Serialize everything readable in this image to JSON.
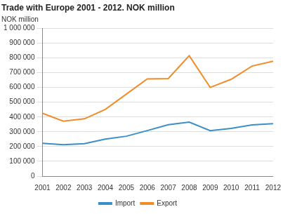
{
  "chart_data": {
    "type": "line",
    "title": "Trade with Europe 2001 - 2012. NOK million",
    "ylabel": "NOK million",
    "categories": [
      "2001",
      "2002",
      "2003",
      "2004",
      "2005",
      "2006",
      "2007",
      "2008",
      "2009",
      "2010",
      "2011",
      "2012"
    ],
    "series": [
      {
        "name": "Import",
        "color": "#3a8fc8",
        "values": [
          222000,
          212000,
          220000,
          250000,
          270000,
          308000,
          348000,
          365000,
          308000,
          323000,
          347000,
          355000
        ]
      },
      {
        "name": "Export",
        "color": "#f28c28",
        "values": [
          425000,
          372000,
          388000,
          452000,
          555000,
          658000,
          660000,
          815000,
          600000,
          655000,
          745000,
          778000
        ]
      }
    ],
    "ylim": [
      0,
      1000000
    ],
    "yticks": [
      0,
      {
        "value": 100000,
        "label": "100 000"
      },
      {
        "value": 200000,
        "label": "200 000"
      },
      {
        "value": 300000,
        "label": "300 000"
      },
      {
        "value": 400000,
        "label": "400 000"
      },
      {
        "value": 500000,
        "label": "500 000"
      },
      {
        "value": 600000,
        "label": "600 000"
      },
      {
        "value": 700000,
        "label": "700 000"
      },
      {
        "value": 800000,
        "label": "800 000"
      },
      {
        "value": 900000,
        "label": "900 000"
      },
      {
        "value": 1000000,
        "label": "1 000 000"
      }
    ],
    "grid": true,
    "legend": "bottom"
  }
}
